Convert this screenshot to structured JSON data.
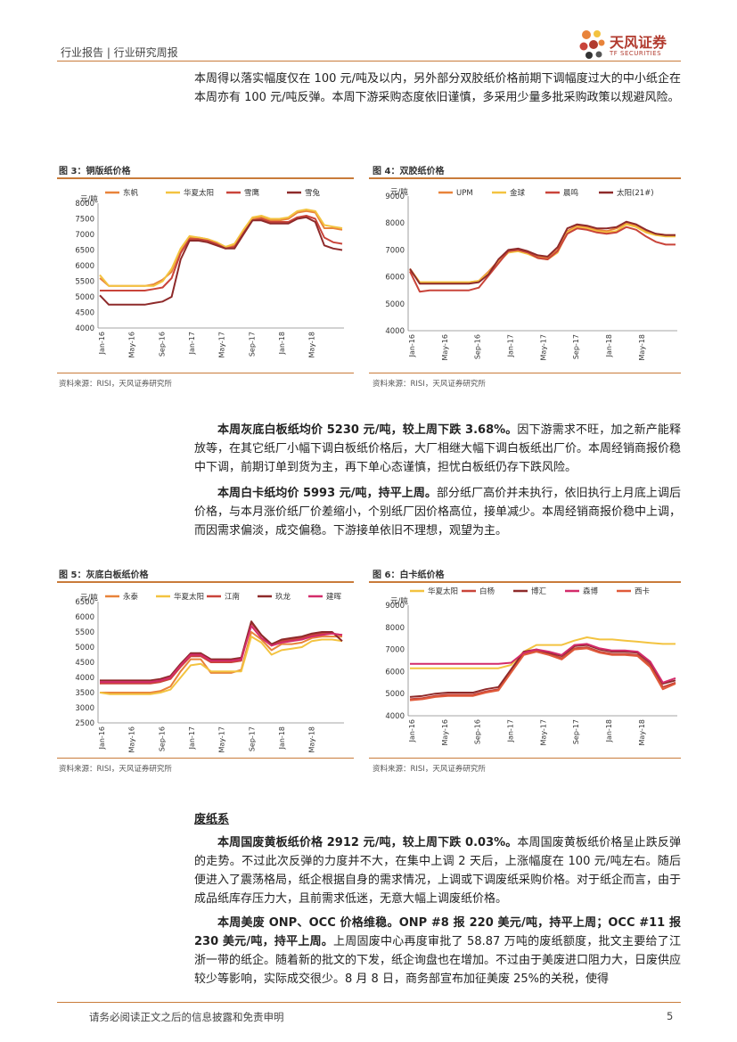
{
  "header": {
    "left": "行业报告 | 行业研究周报",
    "logo_cn": "天风证券",
    "logo_en": "TF SECURITIES"
  },
  "intro_paragraph": "本周得以落实幅度仅在 100 元/吨及以内，另外部分双胶纸价格前期下调幅度过大的中小纸企在本周亦有 100 元/吨反弹。本周下游采购态度依旧谨慎，多采用少量多批采购政策以规避风险。",
  "figures": {
    "fig3": {
      "title": "图 3：铜版纸价格",
      "source": "资料来源：RISI，天风证券研究所"
    },
    "fig4": {
      "title": "图 4：双胶纸价格",
      "source": "资料来源：RISI，天风证券研究所"
    },
    "fig5": {
      "title": "图 5：灰底白板纸价格",
      "source": "资料来源：RISI，天风证券研究所"
    },
    "fig6": {
      "title": "图 6：白卡纸价格",
      "source": "资料来源：RISI，天风证券研究所"
    }
  },
  "para_gray": {
    "lead": "本周灰底白板纸均价 5230 元/吨，较上周下跌 3.68%。",
    "body": "因下游需求不旺，加之新产能释放等，在其它纸厂小幅下调白板纸价格后，大厂相继大幅下调白板纸出厂价。本周经销商报价稳中下调，前期订单到货为主，再下单心态谨慎，担忧白板纸仍存下跌风险。"
  },
  "para_white": {
    "lead": "本周白卡纸均价 5993 元/吨，持平上周。",
    "body": "部分纸厂高价并未执行，依旧执行上月底上调后价格，与本月涨价纸厂价差缩小，个别纸厂因价格高位，接单减少。本周经销商报价稳中上调，而因需求偏淡，成交偏稳。下游接单依旧不理想，观望为主。"
  },
  "section_title": "废纸系",
  "para_waste": {
    "lead": "本周国废黄板纸价格 2912 元/吨，较上周下跌 0.03%。",
    "body": "本周国废黄板纸价格呈止跌反弹的走势。不过此次反弹的力度并不大，在集中上调 2 天后，上涨幅度在 100 元/吨左右。随后便进入了震荡格局，纸企根据自身的需求情况，上调或下调废纸采购价格。对于纸企而言，由于成品纸库存压力大，且前需求低迷，无意大幅上调废纸价格。"
  },
  "para_us": {
    "lead": "本周美废 ONP、OCC 价格维稳。ONP #8 报 220 美元/吨，持平上周；OCC #11 报 230 美元/吨，持平上周。",
    "body": "上周固废中心再度审批了 58.87 万吨的废纸额度，批文主要给了江浙一带的纸企。随着新的批文的下发，纸企询盘也在增加。不过由于美废进口阻力大，日废供应较少等影响，实际成交很少。8 月 8 日，商务部宣布加征美废 25%的关税，使得"
  },
  "footer": {
    "text": "请务必阅读正文之后的信息披露和免责申明",
    "page": "5"
  },
  "chart_data": [
    {
      "id": "fig3",
      "type": "line",
      "ylabel": "元/吨",
      "ylim": [
        4000,
        8000
      ],
      "yticks": [
        4000,
        4500,
        5000,
        5500,
        6000,
        6500,
        7000,
        7500,
        8000
      ],
      "xticks": [
        "Jan-16",
        "May-16",
        "Sep-16",
        "Jan-17",
        "May-17",
        "Sep-17",
        "Jan-18",
        "May-18"
      ],
      "series": [
        {
          "name": "东帆",
          "color": "#e8833a",
          "values": [
            5600,
            5350,
            5350,
            5350,
            5350,
            5350,
            5400,
            5550,
            5800,
            6500,
            6900,
            6900,
            6850,
            6750,
            6600,
            6650,
            7100,
            7500,
            7550,
            7450,
            7450,
            7500,
            7700,
            7750,
            7700,
            7200,
            7200,
            7150
          ]
        },
        {
          "name": "华夏太阳",
          "color": "#f3c340",
          "values": [
            5700,
            5350,
            5350,
            5350,
            5350,
            5350,
            5350,
            5500,
            5900,
            6550,
            6950,
            6900,
            6850,
            6750,
            6600,
            6700,
            7150,
            7550,
            7600,
            7500,
            7500,
            7550,
            7750,
            7800,
            7750,
            7300,
            7250,
            7200
          ]
        },
        {
          "name": "雪鹰",
          "color": "#c9443a",
          "values": [
            5200,
            5200,
            5200,
            5200,
            5200,
            5200,
            5250,
            5300,
            5600,
            6400,
            6850,
            6850,
            6800,
            6700,
            6550,
            6600,
            7050,
            7450,
            7500,
            7400,
            7400,
            7400,
            7550,
            7600,
            7500,
            6900,
            6750,
            6700
          ]
        },
        {
          "name": "雪兔",
          "color": "#8e2a2a",
          "values": [
            5050,
            4750,
            4750,
            4750,
            4750,
            4750,
            4800,
            4850,
            5000,
            6200,
            6800,
            6800,
            6750,
            6650,
            6550,
            6550,
            7000,
            7450,
            7450,
            7350,
            7350,
            7350,
            7500,
            7550,
            7400,
            6650,
            6550,
            6500
          ]
        }
      ]
    },
    {
      "id": "fig4",
      "type": "line",
      "ylabel": "元/吨",
      "ylim": [
        4000,
        9000
      ],
      "yticks": [
        4000,
        5000,
        6000,
        7000,
        8000,
        9000
      ],
      "xticks": [
        "Jan-16",
        "May-16",
        "Sep-16",
        "Jan-17",
        "May-17",
        "Sep-17",
        "Jan-18",
        "May-18"
      ],
      "series": [
        {
          "name": "UPM",
          "color": "#e8833a",
          "values": [
            6250,
            5800,
            5800,
            5800,
            5800,
            5800,
            5800,
            5850,
            6200,
            6600,
            6950,
            7000,
            6900,
            6750,
            6700,
            7000,
            7700,
            7900,
            7850,
            7750,
            7700,
            7800,
            8000,
            7900,
            7700,
            7600,
            7550,
            7550
          ]
        },
        {
          "name": "金球",
          "color": "#f3c340",
          "values": [
            6300,
            5800,
            5800,
            5800,
            5800,
            5800,
            5800,
            5850,
            6150,
            6550,
            6900,
            6950,
            6850,
            6700,
            6650,
            6900,
            7650,
            7850,
            7800,
            7700,
            7650,
            7700,
            7950,
            7850,
            7650,
            7550,
            7500,
            7500
          ]
        },
        {
          "name": "晨鸣",
          "color": "#c9443a",
          "values": [
            6200,
            5450,
            5500,
            5500,
            5500,
            5500,
            5500,
            5600,
            6050,
            6500,
            6950,
            7000,
            6900,
            6700,
            6650,
            6950,
            7600,
            7800,
            7750,
            7650,
            7600,
            7650,
            7850,
            7750,
            7500,
            7300,
            7200,
            7200
          ]
        },
        {
          "name": "太阳(21#)",
          "color": "#8e2a2a",
          "values": [
            6300,
            5750,
            5750,
            5750,
            5750,
            5750,
            5750,
            5800,
            6100,
            6650,
            7000,
            7050,
            6950,
            6800,
            6750,
            7100,
            7800,
            7950,
            7900,
            7800,
            7800,
            7850,
            8050,
            7950,
            7750,
            7600,
            7550,
            7550
          ]
        }
      ]
    },
    {
      "id": "fig5",
      "type": "line",
      "ylabel": "元/吨",
      "ylim": [
        2500,
        6500
      ],
      "yticks": [
        2500,
        3000,
        3500,
        4000,
        4500,
        5000,
        5500,
        6000,
        6500
      ],
      "xticks": [
        "Jan-16",
        "May-16",
        "Sep-16",
        "Jan-17",
        "May-17",
        "Sep-17",
        "Jan-18",
        "May-18"
      ],
      "series": [
        {
          "name": "永泰",
          "color": "#e8833a",
          "values": [
            3500,
            3500,
            3500,
            3500,
            3500,
            3500,
            3550,
            3700,
            4200,
            4600,
            4600,
            4150,
            4150,
            4150,
            4250,
            5500,
            5250,
            4900,
            5100,
            5100,
            5150,
            5300,
            5350,
            5350,
            5350
          ]
        },
        {
          "name": "华夏太阳",
          "color": "#f3c340",
          "values": [
            3500,
            3450,
            3450,
            3450,
            3450,
            3450,
            3500,
            3600,
            4000,
            4400,
            4450,
            4200,
            4200,
            4200,
            4200,
            5350,
            5150,
            4750,
            4900,
            4950,
            5000,
            5200,
            5250,
            5250,
            5200
          ]
        },
        {
          "name": "江南",
          "color": "#c9443a",
          "values": [
            3800,
            3800,
            3800,
            3800,
            3800,
            3800,
            3850,
            3950,
            4350,
            4700,
            4700,
            4500,
            4500,
            4500,
            4550,
            5800,
            5400,
            5050,
            5200,
            5250,
            5300,
            5400,
            5450,
            5450,
            5400
          ]
        },
        {
          "name": "玖龙",
          "color": "#8e2a2a",
          "values": [
            3900,
            3900,
            3900,
            3900,
            3900,
            3900,
            3950,
            4050,
            4450,
            4800,
            4800,
            4600,
            4600,
            4600,
            4650,
            5850,
            5400,
            5100,
            5250,
            5300,
            5350,
            5450,
            5500,
            5500,
            5200
          ]
        },
        {
          "name": "建晖",
          "color": "#d32b6a",
          "values": [
            3850,
            3850,
            3850,
            3850,
            3850,
            3850,
            3900,
            4000,
            4400,
            4750,
            4750,
            4550,
            4550,
            4550,
            4600,
            5700,
            5300,
            5050,
            5150,
            5200,
            5250,
            5350,
            5400,
            5450,
            5400
          ]
        }
      ]
    },
    {
      "id": "fig6",
      "type": "line",
      "ylabel": "元/吨",
      "ylim": [
        4000,
        9000
      ],
      "yticks": [
        4000,
        5000,
        6000,
        7000,
        8000,
        9000
      ],
      "xticks": [
        "Jan-16",
        "May-16",
        "Sep-16",
        "Jan-17",
        "May-17",
        "Sep-17",
        "Jan-18",
        "May-18"
      ],
      "series": [
        {
          "name": "华夏太阳",
          "color": "#f3c340",
          "values": [
            6150,
            6150,
            6150,
            6150,
            6150,
            6150,
            6150,
            6150,
            6300,
            6900,
            7200,
            7200,
            7200,
            7400,
            7550,
            7450,
            7450,
            7400,
            7350,
            7300,
            7250,
            7250
          ]
        },
        {
          "name": "白杨",
          "color": "#c9443a",
          "values": [
            4750,
            4800,
            4900,
            4950,
            4950,
            4950,
            5100,
            5200,
            6000,
            6800,
            6950,
            6800,
            6600,
            7050,
            7100,
            6900,
            6800,
            6800,
            6750,
            6300,
            5300,
            5500
          ]
        },
        {
          "name": "博汇",
          "color": "#8e2a2a",
          "values": [
            4850,
            4900,
            5000,
            5050,
            5050,
            5050,
            5200,
            5300,
            6100,
            6900,
            7000,
            6850,
            6700,
            7150,
            7200,
            7000,
            6900,
            6900,
            6850,
            6400,
            5450,
            5600
          ]
        },
        {
          "name": "森博",
          "color": "#d32b6a",
          "values": [
            6350,
            6350,
            6350,
            6350,
            6350,
            6350,
            6350,
            6350,
            6400,
            6850,
            7000,
            6900,
            6750,
            7200,
            7250,
            7050,
            6950,
            6950,
            6900,
            6450,
            5500,
            5700
          ]
        },
        {
          "name": "西卡",
          "color": "#e05a3a",
          "values": [
            4700,
            4750,
            4850,
            4900,
            4900,
            4900,
            5050,
            5150,
            5950,
            6750,
            6900,
            6750,
            6550,
            7000,
            7050,
            6850,
            6750,
            6750,
            6700,
            6200,
            5200,
            5450
          ]
        }
      ]
    }
  ]
}
